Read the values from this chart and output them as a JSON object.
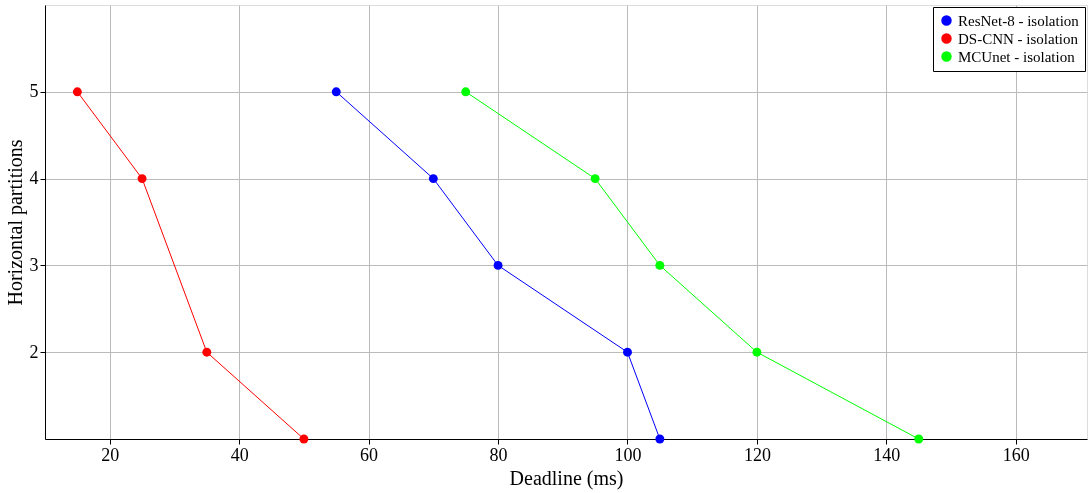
{
  "chart_data": {
    "type": "line",
    "xlabel": "Deadline (ms)",
    "ylabel": "Horizontal partitions",
    "xlim": [
      10,
      171
    ],
    "xticks": [
      20,
      40,
      60,
      80,
      100,
      120,
      140,
      160
    ],
    "ylim": [
      1,
      6
    ],
    "yticks": [
      2,
      3,
      4,
      5
    ],
    "grid": true,
    "legend": "top right",
    "marker": "circle",
    "line_style": "solid",
    "series": [
      {
        "name": "ResNet-8 - isolation",
        "color": "#0000ff",
        "x": [
          55,
          70,
          80,
          100,
          105
        ],
        "values": [
          5,
          4,
          3,
          2,
          1
        ]
      },
      {
        "name": "DS-CNN - isolation",
        "color": "#ff0000",
        "x": [
          15,
          25,
          35,
          50
        ],
        "values": [
          5,
          4,
          2,
          1
        ]
      },
      {
        "name": "MCUnet - isolation",
        "color": "#00ff00",
        "x": [
          75,
          95,
          105,
          120,
          145
        ],
        "values": [
          5,
          4,
          3,
          2,
          1
        ]
      }
    ]
  }
}
